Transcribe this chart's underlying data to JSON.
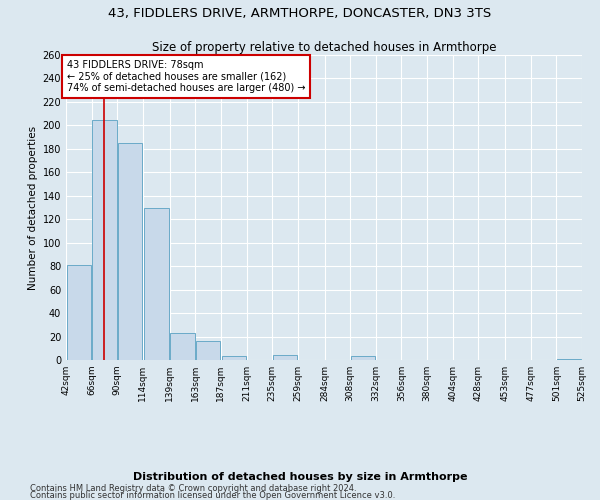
{
  "title1": "43, FIDDLERS DRIVE, ARMTHORPE, DONCASTER, DN3 3TS",
  "title2": "Size of property relative to detached houses in Armthorpe",
  "xlabel": "Distribution of detached houses by size in Armthorpe",
  "ylabel": "Number of detached properties",
  "footer1": "Contains HM Land Registry data © Crown copyright and database right 2024.",
  "footer2": "Contains public sector information licensed under the Open Government Licence v3.0.",
  "bins": [
    42,
    66,
    90,
    114,
    139,
    163,
    187,
    211,
    235,
    259,
    284,
    308,
    332,
    356,
    380,
    404,
    428,
    453,
    477,
    501,
    525
  ],
  "bar_heights": [
    81,
    205,
    185,
    130,
    23,
    16,
    3,
    0,
    4,
    0,
    0,
    3,
    0,
    0,
    0,
    0,
    0,
    0,
    0,
    1
  ],
  "bar_color": "#c8d9ea",
  "bar_edge_color": "#6aaac8",
  "property_size": 78,
  "property_line_color": "#cc0000",
  "annotation_text": "43 FIDDLERS DRIVE: 78sqm\n← 25% of detached houses are smaller (162)\n74% of semi-detached houses are larger (480) →",
  "annotation_box_color": "#cc0000",
  "ylim": [
    0,
    260
  ],
  "background_color": "#dce8f0",
  "fig_background_color": "#dce8f0",
  "grid_color": "#ffffff",
  "title1_fontsize": 9.5,
  "title2_fontsize": 8.5,
  "xlabel_fontsize": 8,
  "ylabel_fontsize": 7.5,
  "tick_fontsize": 6.5,
  "footer_fontsize": 6,
  "annotation_fontsize": 7
}
